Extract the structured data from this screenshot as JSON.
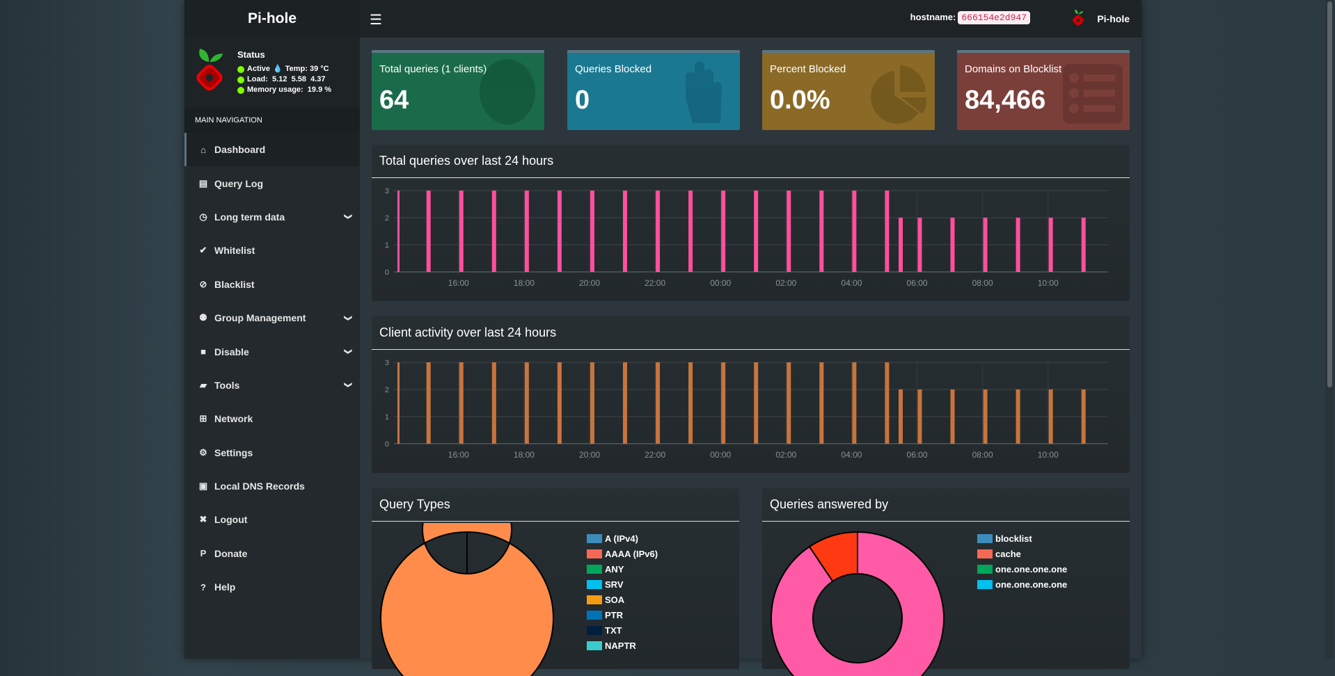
{
  "brand": {
    "title_pre": "Pi-",
    "title_post": "hole"
  },
  "topbar": {
    "hostname_label": "hostname:",
    "hostname": "666154e2d947",
    "name": "Pi-hole",
    "menu_icon": "hamburger-icon"
  },
  "status": {
    "title": "Status",
    "active": "Active",
    "temp": "Temp: 39 °C",
    "load": "Load:  5.12  5.58  4.37",
    "memory": "Memory usage:  19.9 %"
  },
  "nav": {
    "header": "MAIN NAVIGATION",
    "items": [
      {
        "label": "Dashboard",
        "icon": "home-icon",
        "glyph": "⌂",
        "active": true
      },
      {
        "label": "Query Log",
        "icon": "file-icon",
        "glyph": "▤"
      },
      {
        "label": "Long term data",
        "icon": "clock-icon",
        "glyph": "◷",
        "chevron": true
      },
      {
        "label": "Whitelist",
        "icon": "check-circle-icon",
        "glyph": "✔"
      },
      {
        "label": "Blacklist",
        "icon": "ban-icon",
        "glyph": "⊘"
      },
      {
        "label": "Group Management",
        "icon": "users-cog-icon",
        "glyph": "⚉",
        "chevron": true
      },
      {
        "label": "Disable",
        "icon": "stop-icon",
        "glyph": "■",
        "chevron": true
      },
      {
        "label": "Tools",
        "icon": "folder-icon",
        "glyph": "▰",
        "chevron": true
      },
      {
        "label": "Network",
        "icon": "network-icon",
        "glyph": "⊞"
      },
      {
        "label": "Settings",
        "icon": "cogs-icon",
        "glyph": "⚙"
      },
      {
        "label": "Local DNS Records",
        "icon": "address-book-icon",
        "glyph": "▣"
      },
      {
        "label": "Logout",
        "icon": "user-times-icon",
        "glyph": "✖"
      },
      {
        "label": "Donate",
        "icon": "paypal-icon",
        "glyph": "P"
      },
      {
        "label": "Help",
        "icon": "question-circle-icon",
        "glyph": "?"
      }
    ]
  },
  "cards": [
    {
      "label": "Total queries (1 clients)",
      "value": "64",
      "color": "#1a6b4a",
      "icon": "globe-icon"
    },
    {
      "label": "Queries Blocked",
      "value": "0",
      "color": "#1b7891",
      "icon": "hand-icon"
    },
    {
      "label": "Percent Blocked",
      "value": "0.0%",
      "color": "#8a6a26",
      "icon": "pie-chart-icon"
    },
    {
      "label": "Domains on Blocklist",
      "value": "84,466",
      "color": "#7b3f3a",
      "icon": "list-icon"
    }
  ],
  "chart_data": [
    {
      "type": "bar",
      "title": "Total queries over last 24 hours",
      "color": "#ff4f9d",
      "ylim": [
        0,
        3
      ],
      "yticks": [
        "0",
        "1",
        "2",
        "3"
      ],
      "xlim": [
        "14:08",
        "11:50"
      ],
      "xticks": [
        "16:00",
        "18:00",
        "20:00",
        "22:00",
        "00:00",
        "02:00",
        "04:00",
        "06:00",
        "08:00",
        "10:00"
      ],
      "grid": true,
      "x": [
        "14:10",
        "15:05",
        "16:05",
        "17:05",
        "18:05",
        "19:05",
        "20:05",
        "21:05",
        "22:05",
        "23:05",
        "00:05",
        "01:05",
        "02:05",
        "03:05",
        "04:05",
        "05:05",
        "05:30",
        "06:05",
        "07:05",
        "08:05",
        "09:05",
        "10:05",
        "11:05"
      ],
      "values": [
        3,
        3,
        3,
        3,
        3,
        3,
        3,
        3,
        3,
        3,
        3,
        3,
        3,
        3,
        3,
        3,
        2,
        2,
        2,
        2,
        2,
        2,
        2
      ]
    },
    {
      "type": "bar",
      "title": "Client activity over last 24 hours",
      "color": "#c8743e",
      "ylim": [
        0,
        3
      ],
      "yticks": [
        "0",
        "1",
        "2",
        "3"
      ],
      "xlim": [
        "14:08",
        "11:50"
      ],
      "xticks": [
        "16:00",
        "18:00",
        "20:00",
        "22:00",
        "00:00",
        "02:00",
        "04:00",
        "06:00",
        "08:00",
        "10:00"
      ],
      "grid": true,
      "x": [
        "14:10",
        "15:05",
        "16:05",
        "17:05",
        "18:05",
        "19:05",
        "20:05",
        "21:05",
        "22:05",
        "23:05",
        "00:05",
        "01:05",
        "02:05",
        "03:05",
        "04:05",
        "05:05",
        "05:30",
        "06:05",
        "07:05",
        "08:05",
        "09:05",
        "10:05",
        "11:05"
      ],
      "values": [
        3,
        3,
        3,
        3,
        3,
        3,
        3,
        3,
        3,
        3,
        3,
        3,
        3,
        3,
        3,
        3,
        2,
        2,
        2,
        2,
        2,
        2,
        2
      ]
    },
    {
      "type": "pie",
      "title": "Query Types",
      "slices": [
        {
          "label": "A (IPv4)",
          "value": 100,
          "color": "#ff8c4a"
        }
      ],
      "legend": [
        {
          "label": "A (IPv4)",
          "color": "#3c8dbc"
        },
        {
          "label": "AAAA (IPv6)",
          "color": "#f56954"
        },
        {
          "label": "ANY",
          "color": "#00a65a"
        },
        {
          "label": "SRV",
          "color": "#00c0ef"
        },
        {
          "label": "SOA",
          "color": "#f39c12"
        },
        {
          "label": "PTR",
          "color": "#0073b7"
        },
        {
          "label": "TXT",
          "color": "#001f3f"
        },
        {
          "label": "NAPTR",
          "color": "#39cccc"
        }
      ]
    },
    {
      "type": "pie",
      "title": "Queries answered by",
      "slices": [
        {
          "value": 90.6,
          "color": "#ff5aa5"
        },
        {
          "value": 9.4,
          "color": "#ff3a12"
        }
      ],
      "legend": [
        {
          "label": "blocklist",
          "color": "#3c8dbc"
        },
        {
          "label": "cache",
          "color": "#f56954"
        },
        {
          "label": "one.one.one.one",
          "color": "#00a65a"
        },
        {
          "label": "one.one.one.one",
          "color": "#00c0ef"
        }
      ]
    }
  ]
}
